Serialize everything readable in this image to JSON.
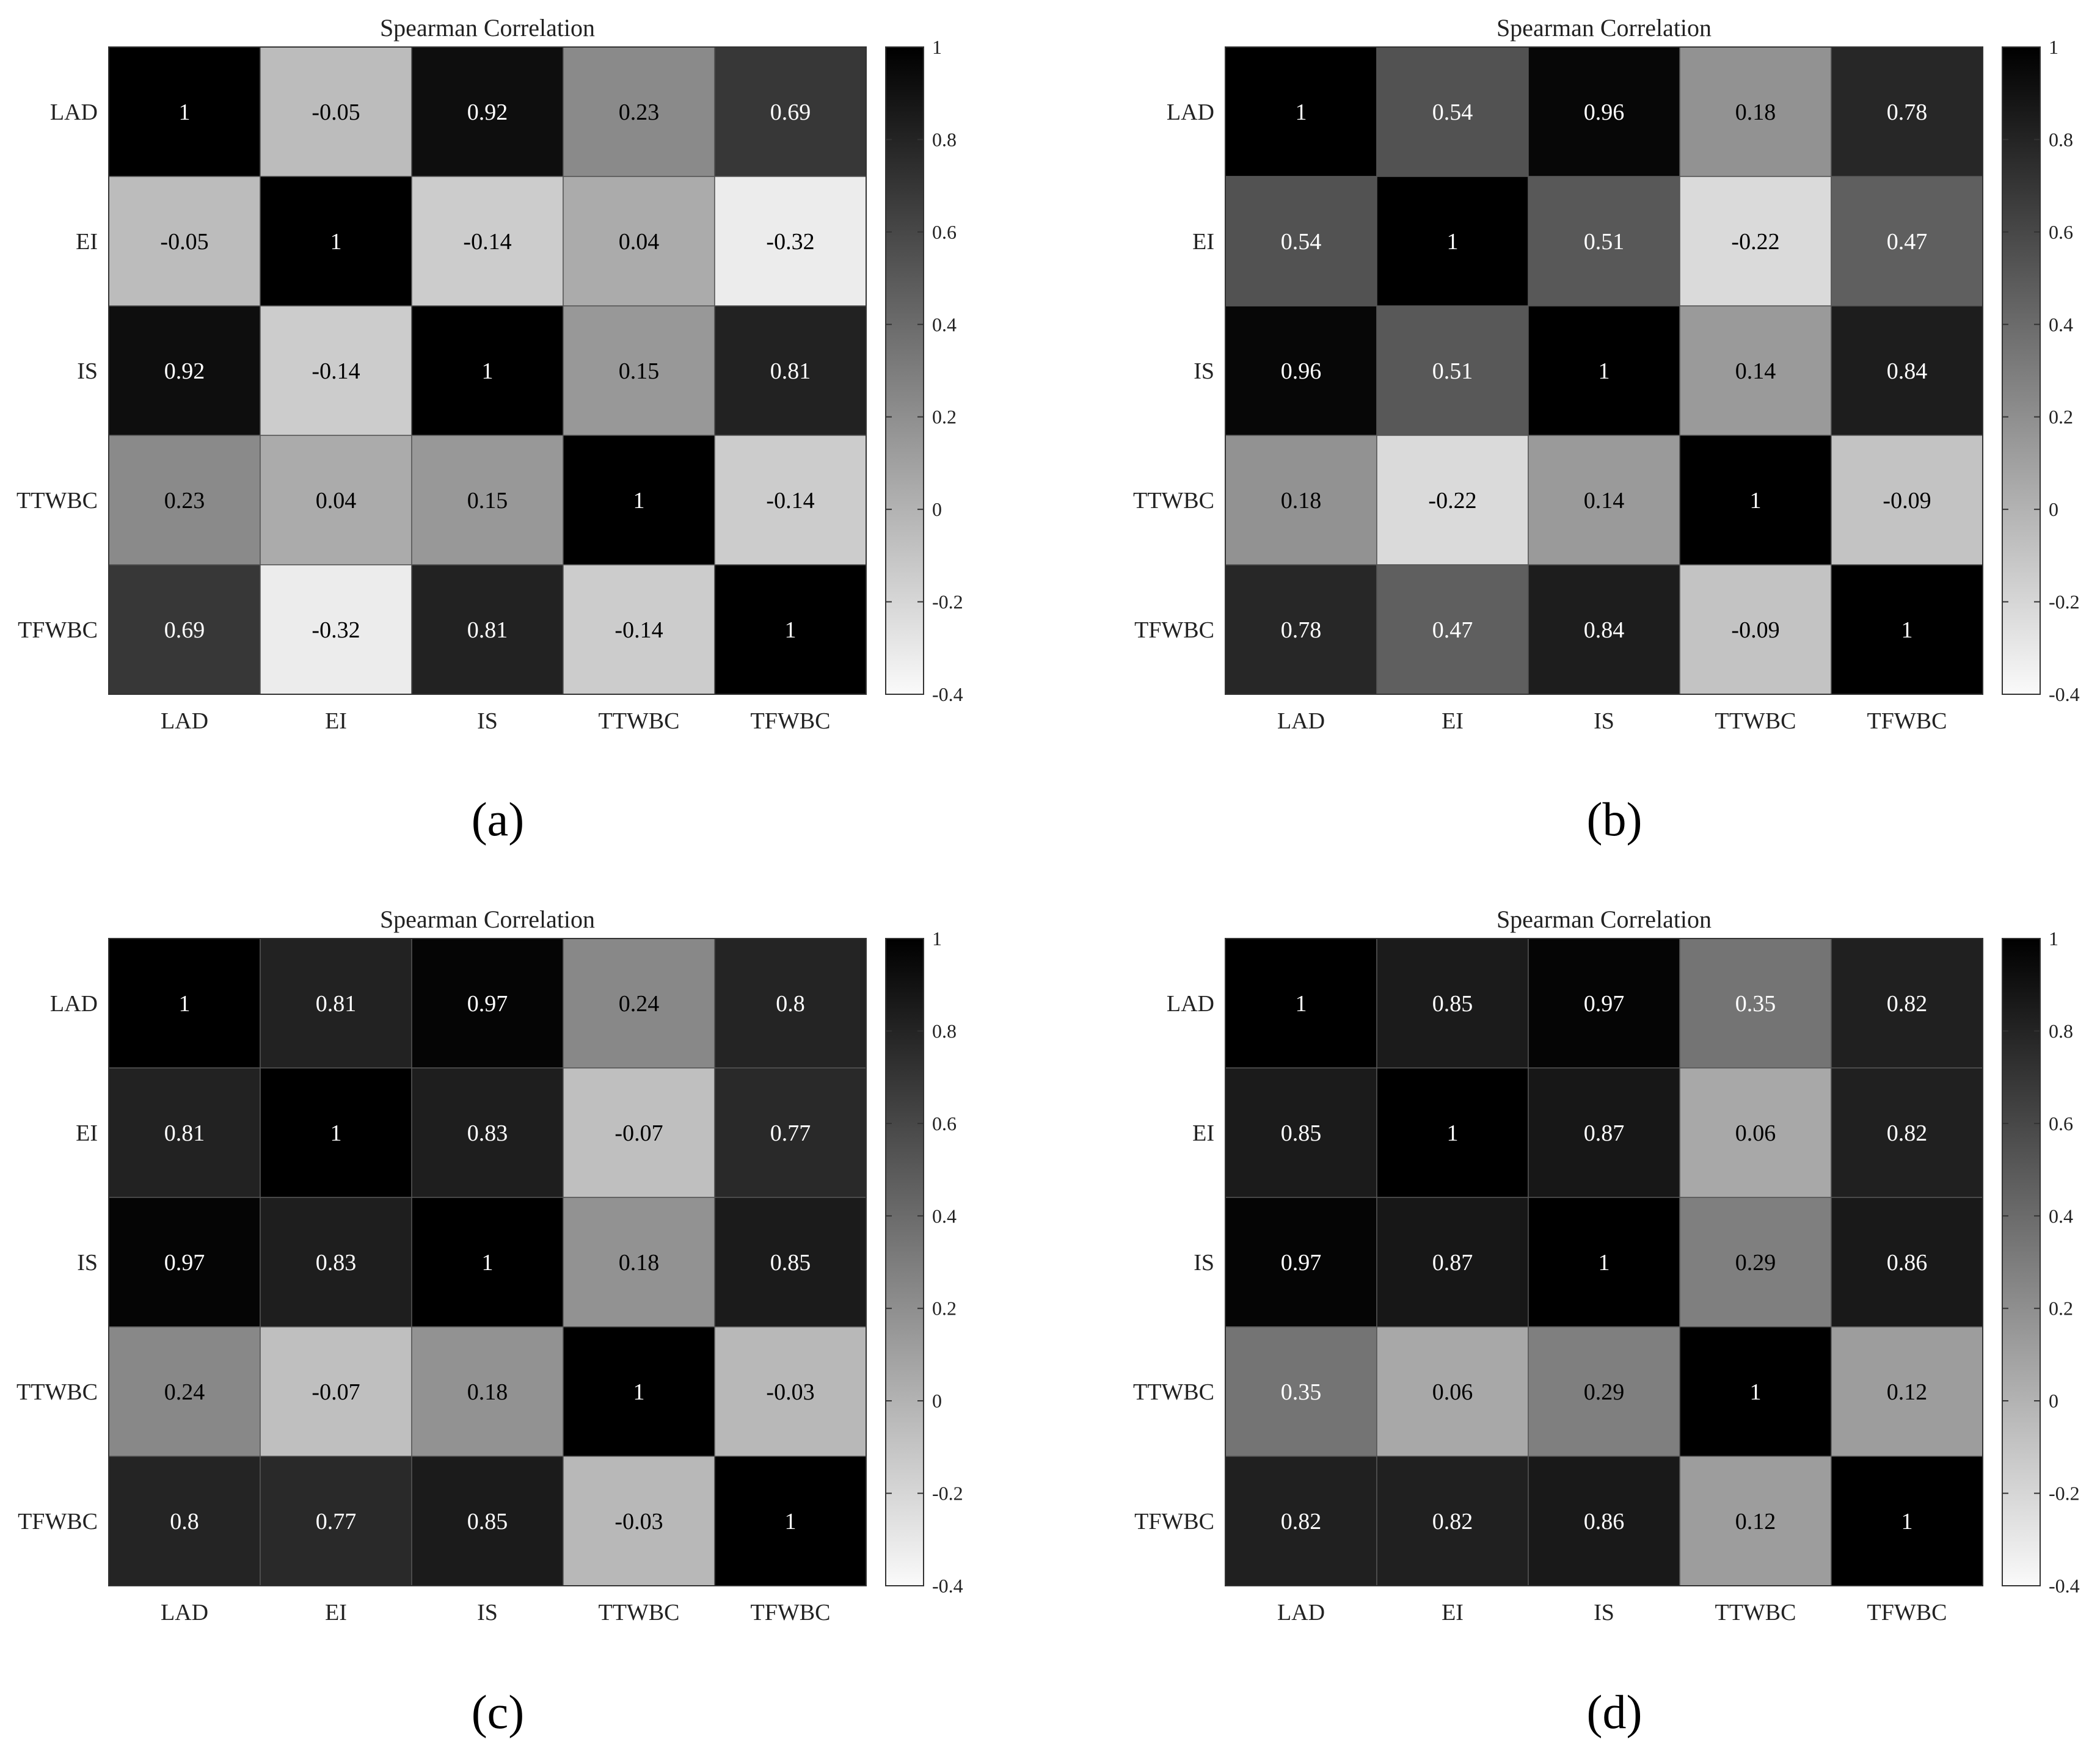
{
  "chart_data": [
    {
      "type": "heatmap",
      "panel": "a",
      "title": "Spearman Correlation",
      "x_labels": [
        "LAD",
        "EI",
        "IS",
        "TTWBC",
        "TFWBC"
      ],
      "y_labels": [
        "LAD",
        "EI",
        "IS",
        "TTWBC",
        "TFWBC"
      ],
      "values": [
        [
          1,
          -0.05,
          0.92,
          0.23,
          0.69
        ],
        [
          -0.05,
          1,
          -0.14,
          0.04,
          -0.32
        ],
        [
          0.92,
          -0.14,
          1,
          0.15,
          0.81
        ],
        [
          0.23,
          0.04,
          0.15,
          1,
          -0.14
        ],
        [
          0.69,
          -0.32,
          0.81,
          -0.14,
          1
        ]
      ],
      "value_labels": [
        [
          "1",
          "-0.05",
          "0.92",
          "0.23",
          "0.69"
        ],
        [
          "-0.05",
          "1",
          "-0.14",
          "0.04",
          "-0.32"
        ],
        [
          "0.92",
          "-0.14",
          "1",
          "0.15",
          "0.81"
        ],
        [
          "0.23",
          "0.04",
          "0.15",
          "1",
          "-0.14"
        ],
        [
          "0.69",
          "-0.32",
          "0.81",
          "-0.14",
          "1"
        ]
      ],
      "colorbar": {
        "min": -0.4,
        "max": 1,
        "ticks": [
          "1",
          "0.8",
          "0.6",
          "0.4",
          "0.2",
          "0",
          "-0.2",
          "-0.4"
        ]
      },
      "colormap": "gray (white = -0.4, black = 1)"
    },
    {
      "type": "heatmap",
      "panel": "b",
      "title": "Spearman Correlation",
      "x_labels": [
        "LAD",
        "EI",
        "IS",
        "TTWBC",
        "TFWBC"
      ],
      "y_labels": [
        "LAD",
        "EI",
        "IS",
        "TTWBC",
        "TFWBC"
      ],
      "values": [
        [
          1,
          0.54,
          0.96,
          0.18,
          0.78
        ],
        [
          0.54,
          1,
          0.51,
          -0.22,
          0.47
        ],
        [
          0.96,
          0.51,
          1,
          0.14,
          0.84
        ],
        [
          0.18,
          -0.22,
          0.14,
          1,
          -0.09
        ],
        [
          0.78,
          0.47,
          0.84,
          -0.09,
          1
        ]
      ],
      "value_labels": [
        [
          "1",
          "0.54",
          "0.96",
          "0.18",
          "0.78"
        ],
        [
          "0.54",
          "1",
          "0.51",
          "-0.22",
          "0.47"
        ],
        [
          "0.96",
          "0.51",
          "1",
          "0.14",
          "0.84"
        ],
        [
          "0.18",
          "-0.22",
          "0.14",
          "1",
          "-0.09"
        ],
        [
          "0.78",
          "0.47",
          "0.84",
          "-0.09",
          "1"
        ]
      ],
      "colorbar": {
        "min": -0.4,
        "max": 1,
        "ticks": [
          "1",
          "0.8",
          "0.6",
          "0.4",
          "0.2",
          "0",
          "-0.2",
          "-0.4"
        ]
      },
      "colormap": "gray (white = -0.4, black = 1)"
    },
    {
      "type": "heatmap",
      "panel": "c",
      "title": "Spearman Correlation",
      "x_labels": [
        "LAD",
        "EI",
        "IS",
        "TTWBC",
        "TFWBC"
      ],
      "y_labels": [
        "LAD",
        "EI",
        "IS",
        "TTWBC",
        "TFWBC"
      ],
      "values": [
        [
          1,
          0.81,
          0.97,
          0.24,
          0.8
        ],
        [
          0.81,
          1,
          0.83,
          -0.07,
          0.77
        ],
        [
          0.97,
          0.83,
          1,
          0.18,
          0.85
        ],
        [
          0.24,
          -0.07,
          0.18,
          1,
          -0.03
        ],
        [
          0.8,
          0.77,
          0.85,
          -0.03,
          1
        ]
      ],
      "value_labels": [
        [
          "1",
          "0.81",
          "0.97",
          "0.24",
          "0.8"
        ],
        [
          "0.81",
          "1",
          "0.83",
          "-0.07",
          "0.77"
        ],
        [
          "0.97",
          "0.83",
          "1",
          "0.18",
          "0.85"
        ],
        [
          "0.24",
          "-0.07",
          "0.18",
          "1",
          "-0.03"
        ],
        [
          "0.8",
          "0.77",
          "0.85",
          "-0.03",
          "1"
        ]
      ],
      "colorbar": {
        "min": -0.4,
        "max": 1,
        "ticks": [
          "1",
          "0.8",
          "0.6",
          "0.4",
          "0.2",
          "0",
          "-0.2",
          "-0.4"
        ]
      },
      "colormap": "gray (white = -0.4, black = 1)"
    },
    {
      "type": "heatmap",
      "panel": "d",
      "title": "Spearman Correlation",
      "x_labels": [
        "LAD",
        "EI",
        "IS",
        "TTWBC",
        "TFWBC"
      ],
      "y_labels": [
        "LAD",
        "EI",
        "IS",
        "TTWBC",
        "TFWBC"
      ],
      "values": [
        [
          1,
          0.85,
          0.97,
          0.35,
          0.82
        ],
        [
          0.85,
          1,
          0.87,
          0.06,
          0.82
        ],
        [
          0.97,
          0.87,
          1,
          0.29,
          0.86
        ],
        [
          0.35,
          0.06,
          0.29,
          1,
          0.12
        ],
        [
          0.82,
          0.82,
          0.86,
          0.12,
          1
        ]
      ],
      "value_labels": [
        [
          "1",
          "0.85",
          "0.97",
          "0.35",
          "0.82"
        ],
        [
          "0.85",
          "1",
          "0.87",
          "0.06",
          "0.82"
        ],
        [
          "0.97",
          "0.87",
          "1",
          "0.29",
          "0.86"
        ],
        [
          "0.35",
          "0.06",
          "0.29",
          "1",
          "0.12"
        ],
        [
          "0.82",
          "0.82",
          "0.86",
          "0.12",
          "1"
        ]
      ],
      "colorbar": {
        "min": -0.4,
        "max": 1,
        "ticks": [
          "1",
          "0.8",
          "0.6",
          "0.4",
          "0.2",
          "0",
          "-0.2",
          "-0.4"
        ]
      },
      "colormap": "gray (white = -0.4, black = 1)"
    }
  ],
  "panel_labels": [
    "(a)",
    "(b)",
    "(c)",
    "(d)"
  ],
  "colors": {
    "background": "#ffffff",
    "text": "#222222",
    "cell_border": "#555555",
    "label_light": "#ffffff",
    "label_dark": "#000000"
  }
}
